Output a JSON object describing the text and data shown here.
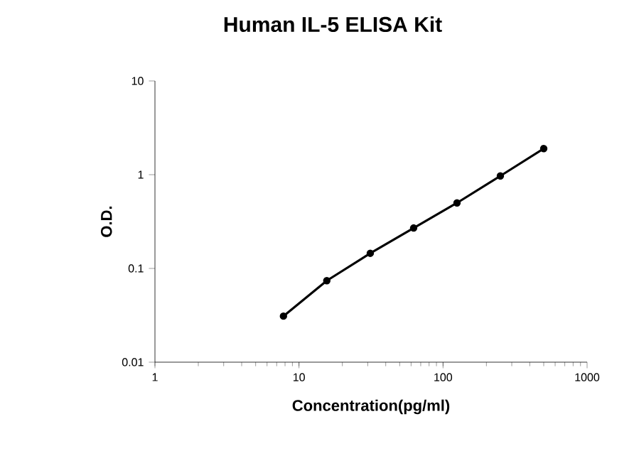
{
  "chart_data": {
    "type": "line",
    "title": "Human IL-5 ELISA Kit",
    "xlabel": "Concentration(pg/ml)",
    "ylabel": "O.D.",
    "log": "xy",
    "marker": "circle",
    "grid": false,
    "x": [
      7.8,
      15.6,
      31.25,
      62.5,
      125,
      250,
      500
    ],
    "series": [
      {
        "color": "#000000",
        "values": [
          0.031,
          0.074,
          0.145,
          0.27,
          0.5,
          0.97,
          1.9
        ]
      }
    ],
    "xlim": [
      1,
      1000
    ],
    "xticks": [
      1,
      10,
      100,
      1000
    ],
    "ylim": [
      0.01,
      10
    ],
    "yticks": [
      0.01,
      0.1,
      1,
      10
    ]
  }
}
